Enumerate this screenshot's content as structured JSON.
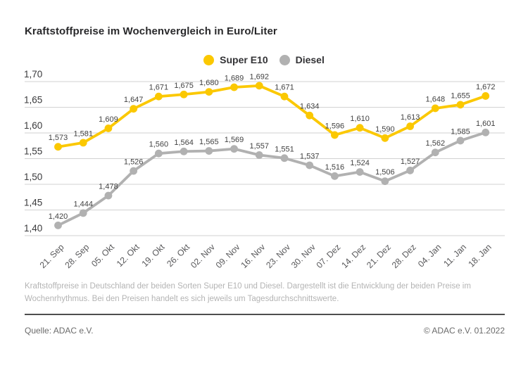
{
  "page": {
    "title": "Kraftstoffpreise im Wochenvergleich in Euro/Liter",
    "description": "Kraftstoffpreise in Deutschland der beiden Sorten Super E10 und Diesel. Dargestellt ist die Entwicklung der beiden Preise im Wochenrhythmus. Bei den Preisen handelt es sich jeweils um Tagesdurchschnittswerte.",
    "source": "Quelle: ADAC e.V.",
    "copyright": "© ADAC e.V. 01.2022"
  },
  "legend": {
    "items": [
      {
        "label": "Super E10",
        "color": "#FBC800"
      },
      {
        "label": "Diesel",
        "color": "#B1B1B1"
      }
    ]
  },
  "colors": {
    "super_e10": "#FBC800",
    "diesel": "#B1B1B1",
    "gridline": "#d2d2d2",
    "value_label": "#424242",
    "y_tick": "#3a3a3c",
    "x_tick": "#59595b"
  },
  "chart_data": {
    "type": "line",
    "title": "Kraftstoffpreise im Wochenvergleich in Euro/Liter",
    "unit": "Euro/Liter",
    "grid": true,
    "legend_position": "top-center",
    "decimal_separator": ",",
    "ylim": [
      1.4,
      1.7
    ],
    "y_ticks": [
      1.7,
      1.65,
      1.6,
      1.55,
      1.5,
      1.45,
      1.4
    ],
    "y_tick_labels": [
      "1,70",
      "1,65",
      "1,60",
      "1,55",
      "1,50",
      "1,45",
      "1,40"
    ],
    "categories": [
      "21. Sep",
      "28. Sep",
      "05. Okt",
      "12. Okt",
      "19. Okt",
      "26. Okt",
      "02. Nov",
      "09. Nov",
      "16. Nov",
      "23. Nov",
      "30. Nov",
      "07. Dez",
      "14. Dez",
      "21. Dez",
      "28. Dez",
      "04. Jan",
      "11. Jan",
      "18. Jan"
    ],
    "series": [
      {
        "name": "Super E10",
        "color": "#FBC800",
        "values": [
          1.573,
          1.581,
          1.609,
          1.647,
          1.671,
          1.675,
          1.68,
          1.689,
          1.692,
          1.671,
          1.634,
          1.596,
          1.61,
          1.59,
          1.613,
          1.648,
          1.655,
          1.672
        ],
        "labels": [
          "1,573",
          "1,581",
          "1,609",
          "1,647",
          "1,671",
          "1,675",
          "1,680",
          "1,689",
          "1,692",
          "1,671",
          "1,634",
          "1,596",
          "1,610",
          "1,590",
          "1,613",
          "1,648",
          "1,655",
          "1,672"
        ]
      },
      {
        "name": "Diesel",
        "color": "#B1B1B1",
        "values": [
          1.42,
          1.444,
          1.478,
          1.526,
          1.56,
          1.564,
          1.565,
          1.569,
          1.557,
          1.551,
          1.537,
          1.516,
          1.524,
          1.506,
          1.527,
          1.562,
          1.585,
          1.601
        ],
        "labels": [
          "1,420",
          "1,444",
          "1,478",
          "1,526",
          "1,560",
          "1,564",
          "1,565",
          "1,569",
          "1,557",
          "1,551",
          "1,537",
          "1,516",
          "1,524",
          "1,506",
          "1,527",
          "1,562",
          "1,585",
          "1,601"
        ]
      }
    ]
  }
}
